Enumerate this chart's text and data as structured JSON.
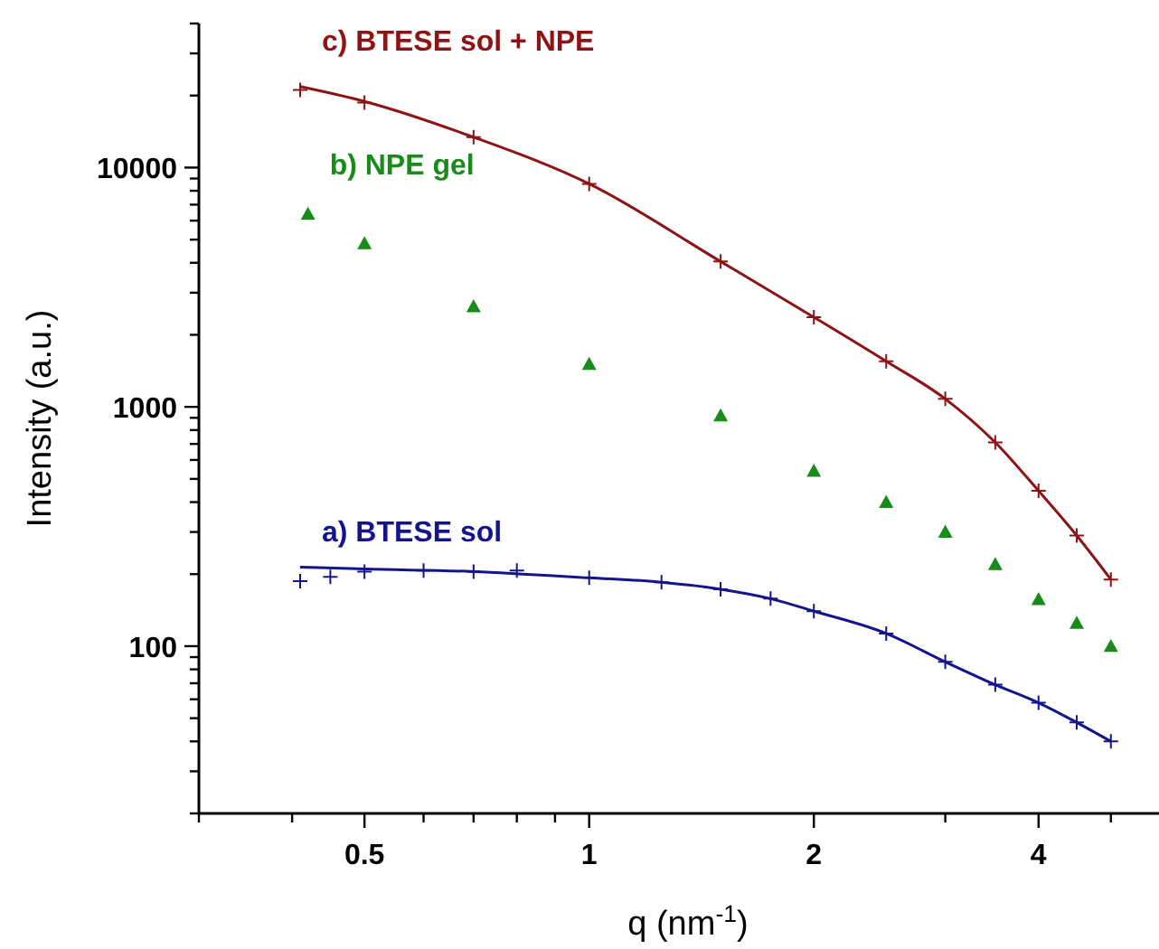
{
  "chart_data": {
    "type": "scatter",
    "xlabel": "q (nm$^{-1}$)",
    "ylabel": "Intensity (a.u.)",
    "log": "xy",
    "grid": false,
    "xlim": [
      0.3,
      5.8
    ],
    "ylim": [
      20,
      40000
    ],
    "xticks": [
      {
        "value": 0.3,
        "label": null
      },
      {
        "value": 0.4,
        "label": null
      },
      0.5,
      {
        "value": 0.6,
        "label": null
      },
      {
        "value": 0.7,
        "label": null
      },
      {
        "value": 0.8,
        "label": null
      },
      {
        "value": 0.9,
        "label": null
      },
      1,
      2,
      {
        "value": 3,
        "label": null
      },
      4,
      {
        "value": 5,
        "label": null
      }
    ],
    "yticks": [
      {
        "value": 20,
        "label": null
      },
      {
        "value": 30,
        "label": null
      },
      {
        "value": 40,
        "label": null
      },
      {
        "value": 50,
        "label": null
      },
      {
        "value": 60,
        "label": null
      },
      {
        "value": 70,
        "label": null
      },
      {
        "value": 80,
        "label": null
      },
      {
        "value": 90,
        "label": null
      },
      100,
      {
        "value": 200,
        "label": null
      },
      {
        "value": 300,
        "label": null
      },
      {
        "value": 400,
        "label": null
      },
      {
        "value": 500,
        "label": null
      },
      {
        "value": 600,
        "label": null
      },
      {
        "value": 700,
        "label": null
      },
      {
        "value": 800,
        "label": null
      },
      {
        "value": 900,
        "label": null
      },
      1000,
      {
        "value": 2000,
        "label": null
      },
      {
        "value": 3000,
        "label": null
      },
      {
        "value": 4000,
        "label": null
      },
      {
        "value": 5000,
        "label": null
      },
      {
        "value": 6000,
        "label": null
      },
      {
        "value": 7000,
        "label": null
      },
      {
        "value": 8000,
        "label": null
      },
      {
        "value": 9000,
        "label": null
      },
      10000,
      {
        "value": 20000,
        "label": null
      },
      {
        "value": 30000,
        "label": null
      },
      {
        "value": 40000,
        "label": null
      }
    ],
    "series": [
      {
        "name": "c) BTESE sol + NPE",
        "marker": "cross",
        "color": "#8c1414",
        "x": [
          0.41,
          0.5,
          0.7,
          1,
          1.5,
          2,
          2.5,
          3,
          3.5,
          4,
          4.5,
          5
        ],
        "values": [
          21100,
          18700,
          13400,
          8550,
          4050,
          2370,
          1550,
          1080,
          710,
          446,
          290,
          190
        ]
      },
      {
        "type": "line",
        "marker": "none",
        "color": "#8c1414",
        "x": [
          0.41,
          0.5,
          0.7,
          1,
          1.5,
          2,
          2.5,
          3,
          3.5,
          4,
          4.5,
          5
        ],
        "values": [
          21800,
          18900,
          13400,
          8550,
          4050,
          2370,
          1550,
          1080,
          710,
          446,
          290,
          190
        ]
      },
      {
        "name": "b) NPE gel",
        "marker": "triangle",
        "color": "#188c18",
        "x": [
          0.42,
          0.5,
          0.7,
          1,
          1.5,
          2,
          2.5,
          3,
          3.5,
          4,
          4.5,
          5
        ],
        "values": [
          6400,
          4820,
          2630,
          1510,
          920,
          540,
          400,
          300,
          220,
          157,
          125,
          100
        ]
      },
      {
        "name": "a) BTESE sol",
        "marker": "cross",
        "color": "#14148c",
        "x": [
          0.41,
          0.45,
          0.5,
          0.6,
          0.7,
          0.8,
          1,
          1.25,
          1.5,
          1.75,
          2,
          2.5,
          3,
          3.5,
          4,
          4.5,
          5
        ],
        "values": [
          187,
          195,
          205,
          207,
          205,
          207,
          193,
          185,
          173,
          158,
          140,
          113,
          86,
          69,
          58,
          48,
          40
        ]
      },
      {
        "type": "line",
        "marker": "none",
        "color": "#14148c",
        "x": [
          0.41,
          0.5,
          0.7,
          1,
          1.25,
          1.5,
          1.75,
          2,
          2.5,
          3,
          3.5,
          4,
          4.5,
          5
        ],
        "values": [
          214,
          210,
          205,
          193,
          185,
          173,
          158,
          140,
          113,
          86,
          69,
          58,
          48,
          40
        ]
      }
    ]
  }
}
